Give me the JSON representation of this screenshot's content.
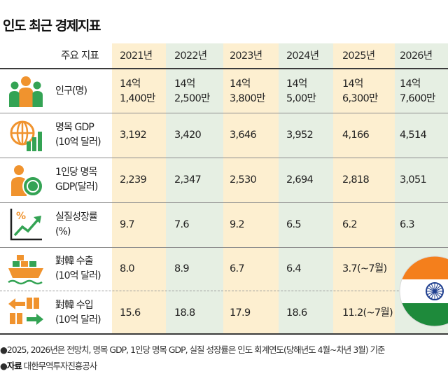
{
  "title": "인도 최근 경제지표",
  "chart_data": {
    "type": "table",
    "header_label": "주요 지표",
    "years": [
      "2021년",
      "2022년",
      "2023년",
      "2024년",
      "2025년",
      "2026년"
    ],
    "rows": [
      {
        "icon": "population-icon",
        "label": "인구(명)",
        "values": [
          "14억\n1,400만",
          "14억\n2,500만",
          "14억\n3,800만",
          "14억\n5,00만",
          "14억\n6,300만",
          "14억\n7,600만"
        ]
      },
      {
        "icon": "gdp-globe-chart-icon",
        "label": "명목 GDP\n(10억 달러)",
        "values": [
          "3,192",
          "3,420",
          "3,646",
          "3,952",
          "4,166",
          "4,514"
        ]
      },
      {
        "icon": "per-capita-coin-icon",
        "label": "1인당 명목\nGDP(달러)",
        "values": [
          "2,239",
          "2,347",
          "2,530",
          "2,694",
          "2,818",
          "3,051"
        ]
      },
      {
        "icon": "growth-chart-icon",
        "label": "실질성장률\n(%)",
        "values": [
          "9.7",
          "7.6",
          "9.2",
          "6.5",
          "6.2",
          "6.3"
        ]
      },
      {
        "icon": "export-ship-icon",
        "label": "對韓 수출\n(10억 달러)",
        "values": [
          "8.0",
          "8.9",
          "6.7",
          "6.4",
          "3.7(~7월)",
          ""
        ]
      },
      {
        "icon": "import-boxes-icon",
        "label": "對韓 수입\n(10억 달러)",
        "values": [
          "15.6",
          "18.8",
          "17.9",
          "18.6",
          "11.2(~7월)",
          ""
        ]
      }
    ]
  },
  "notes": {
    "bullet": "●",
    "forecast": "2025, 2026년은 전망치, 명목 GDP, 1인당 명목 GDP, 실질 성장률은 인도 회계연도(당해년도 4월~차년 3월) 기준",
    "source_label": "자료",
    "source": "대한무역투자진흥공사"
  },
  "colors": {
    "orange_band": "#fdefd0",
    "green_band": "#e6efe3",
    "icon_orange": "#f0932e",
    "icon_green": "#34a354",
    "saffron": "#f47f1c",
    "india_green": "#1e8a3b",
    "chakra_blue": "#1f3f8f"
  }
}
